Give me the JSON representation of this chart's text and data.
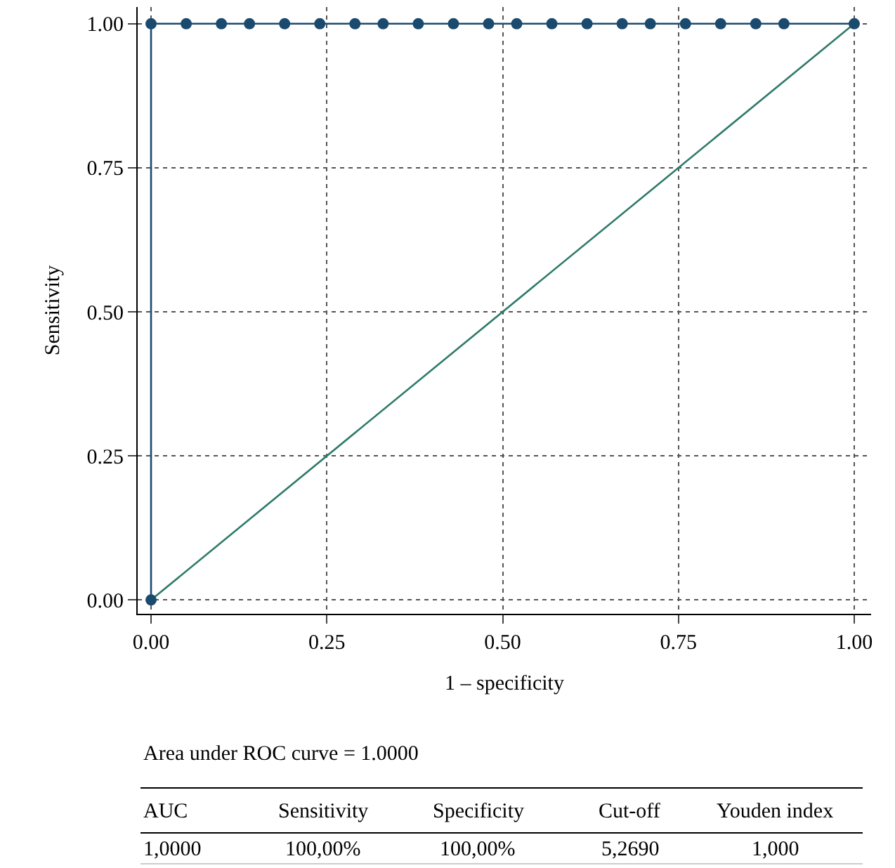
{
  "chart_data": {
    "type": "line",
    "xlabel": "1 – specificity",
    "ylabel": "Sensitivity",
    "xlim": [
      -0.019,
      1.024
    ],
    "ylim": [
      -0.024,
      1.029
    ],
    "xticks": [
      {
        "value": 0,
        "label": "0.00"
      },
      {
        "value": 0.25,
        "label": "0.25"
      },
      {
        "value": 0.5,
        "label": "0.50"
      },
      {
        "value": 0.75,
        "label": "0.75"
      },
      {
        "value": 1,
        "label": "1.00"
      }
    ],
    "yticks": [
      {
        "value": 0,
        "label": "0.00"
      },
      {
        "value": 0.25,
        "label": "0.25"
      },
      {
        "value": 0.5,
        "label": "0.50"
      },
      {
        "value": 0.75,
        "label": "0.75"
      },
      {
        "value": 1,
        "label": "1.00"
      }
    ],
    "grid": true,
    "legend": false,
    "line_style": "solid",
    "series": [
      {
        "color": "#2e7a6a",
        "marker": "none",
        "x": [
          0,
          1
        ],
        "values": [
          0,
          1
        ]
      },
      {
        "color": "#1a4a6e",
        "marker": "circle",
        "x": [
          0,
          0,
          0.05,
          0.1,
          0.14,
          0.19,
          0.24,
          0.29,
          0.33,
          0.38,
          0.43,
          0.48,
          0.52,
          0.57,
          0.62,
          0.67,
          0.71,
          0.76,
          0.81,
          0.86,
          0.9,
          1
        ],
        "values": [
          0,
          1,
          1,
          1,
          1,
          1,
          1,
          1,
          1,
          1,
          1,
          1,
          1,
          1,
          1,
          1,
          1,
          1,
          1,
          1,
          1,
          1
        ]
      }
    ],
    "annotations": [
      "Area under ROC curve = 1.0000",
      "AUC",
      "Sensitivity",
      "Specificity",
      "Cut-off",
      "Youden index",
      "1,0000",
      "100,00%",
      "100,00%",
      "5,2690",
      "1,000"
    ]
  }
}
